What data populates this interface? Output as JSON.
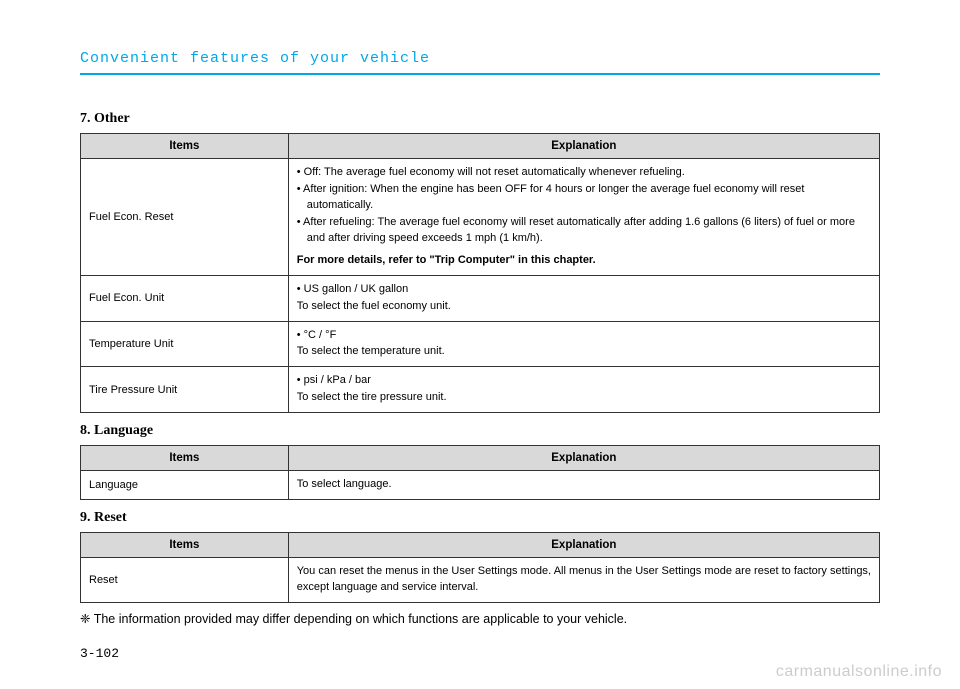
{
  "chapterTitle": "Convenient features of your vehicle",
  "section7": {
    "title": "7. Other",
    "headers": {
      "items": "Items",
      "explanation": "Explanation"
    },
    "rows": [
      {
        "item": "Fuel Econ. Reset",
        "bullets": [
          "Off: The average fuel economy will not reset automatically whenever refueling.",
          "After ignition: When the engine has been OFF for 4 hours or longer the average fuel economy will reset automatically.",
          "After refueling: The average fuel economy will reset automatically after adding 1.6 gallons (6 liters) of fuel or more and after driving speed exceeds 1 mph (1 km/h)."
        ],
        "note": "For more details, refer to \"Trip Computer\" in this chapter."
      },
      {
        "item": "Fuel Econ. Unit",
        "bullets": [
          "US gallon / UK gallon"
        ],
        "text": "To select the fuel economy unit."
      },
      {
        "item": "Temperature Unit",
        "bullets": [
          "°C / °F"
        ],
        "text": "To select the temperature unit."
      },
      {
        "item": "Tire Pressure Unit",
        "bullets": [
          "psi / kPa / bar"
        ],
        "text": "To select the tire pressure unit."
      }
    ]
  },
  "section8": {
    "title": "8. Language",
    "headers": {
      "items": "Items",
      "explanation": "Explanation"
    },
    "rows": [
      {
        "item": "Language",
        "text": "To select language."
      }
    ]
  },
  "section9": {
    "title": "9. Reset",
    "headers": {
      "items": "Items",
      "explanation": "Explanation"
    },
    "rows": [
      {
        "item": "Reset",
        "text": "You can reset the menus in the User Settings mode. All menus in the User Settings mode are reset to factory settings, except language and service interval."
      }
    ]
  },
  "footnote": "❈ The information provided may differ depending on which functions are applicable to your vehicle.",
  "pageNum": "3-102",
  "watermark": "carmanualsonline.info",
  "colors": {
    "accent": "#00a8e8",
    "headerBg": "#d9d9d9",
    "border": "#333333",
    "watermark": "#cccccc"
  }
}
